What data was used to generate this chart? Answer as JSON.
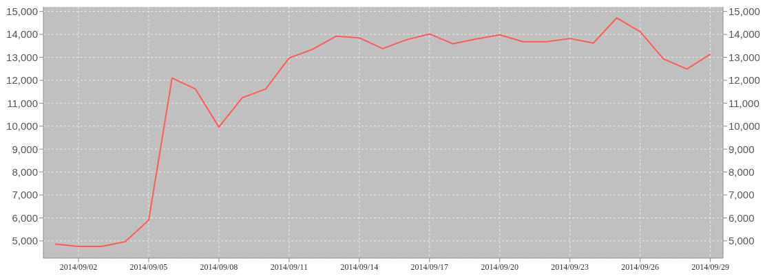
{
  "chart_data": {
    "type": "line",
    "x": [
      "2014-09-01",
      "2014-09-02",
      "2014-09-03",
      "2014-09-04",
      "2014-09-05",
      "2014-09-06",
      "2014-09-07",
      "2014-09-08",
      "2014-09-09",
      "2014-09-10",
      "2014-09-11",
      "2014-09-12",
      "2014-09-13",
      "2014-09-14",
      "2014-09-15",
      "2014-09-16",
      "2014-09-17",
      "2014-09-18",
      "2014-09-19",
      "2014-09-20",
      "2014-09-21",
      "2014-09-22",
      "2014-09-23",
      "2014-09-24",
      "2014-09-25",
      "2014-09-26",
      "2014-09-27",
      "2014-09-28",
      "2014-09-29"
    ],
    "series": [
      {
        "color": "#ff5a5a",
        "values": [
          4860,
          4760,
          4760,
          4970,
          5900,
          12100,
          11620,
          9960,
          11240,
          11620,
          12970,
          13350,
          13920,
          13850,
          13380,
          13760,
          14020,
          13590,
          13800,
          13980,
          13680,
          13680,
          13820,
          13620,
          14720,
          14120,
          12930,
          12490,
          13140
        ]
      }
    ],
    "xlim": [
      "2014-08-31T12:00",
      "2014-09-29T13:00"
    ],
    "xticks": [
      {
        "value": "2014-09-02",
        "label": "2014/09/02"
      },
      {
        "value": "2014-09-05",
        "label": "2014/09/05"
      },
      {
        "value": "2014-09-08",
        "label": "2014/09/08"
      },
      {
        "value": "2014-09-11",
        "label": "2014/09/11"
      },
      {
        "value": "2014-09-14",
        "label": "2014/09/14"
      },
      {
        "value": "2014-09-17",
        "label": "2014/09/17"
      },
      {
        "value": "2014-09-20",
        "label": "2014/09/20"
      },
      {
        "value": "2014-09-23",
        "label": "2014/09/23"
      },
      {
        "value": "2014-09-26",
        "label": "2014/09/26"
      },
      {
        "value": "2014-09-29",
        "label": "2014/09/29"
      }
    ],
    "ylim": [
      4250,
      15200
    ],
    "yticks": [
      {
        "value": 5000,
        "label": "5,000"
      },
      {
        "value": 6000,
        "label": "6,000"
      },
      {
        "value": 7000,
        "label": "7,000"
      },
      {
        "value": 8000,
        "label": "8,000"
      },
      {
        "value": 9000,
        "label": "9,000"
      },
      {
        "value": 10000,
        "label": "10,000"
      },
      {
        "value": 11000,
        "label": "11,000"
      },
      {
        "value": 12000,
        "label": "12,000"
      },
      {
        "value": 13000,
        "label": "13,000"
      },
      {
        "value": 14000,
        "label": "14,000"
      },
      {
        "value": 15000,
        "label": "15,000"
      }
    ],
    "y2lim": [
      4250,
      15200
    ],
    "y2ticks": [
      {
        "value": 5000,
        "label": "5,000"
      },
      {
        "value": 6000,
        "label": "6,000"
      },
      {
        "value": 7000,
        "label": "7,000"
      },
      {
        "value": 8000,
        "label": "8,000"
      },
      {
        "value": 9000,
        "label": "9,000"
      },
      {
        "value": 10000,
        "label": "10,000"
      },
      {
        "value": 11000,
        "label": "11,000"
      },
      {
        "value": 12000,
        "label": "12,000"
      },
      {
        "value": 13000,
        "label": "13,000"
      },
      {
        "value": 14000,
        "label": "14,000"
      },
      {
        "value": 15000,
        "label": "15,000"
      }
    ],
    "grid": true,
    "legend": false,
    "marker": "none",
    "line_style": "solid"
  }
}
